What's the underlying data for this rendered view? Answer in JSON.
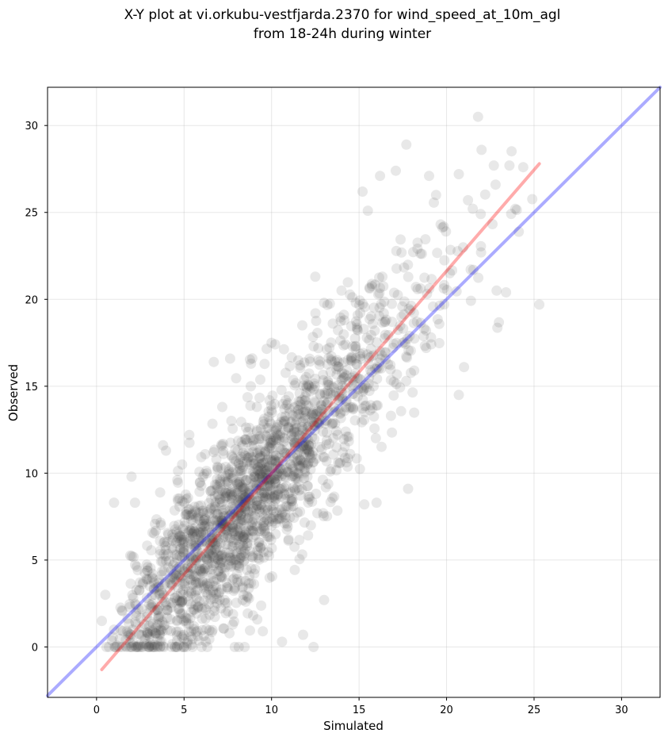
{
  "chart_data": {
    "type": "scatter",
    "title": [
      "X-Y plot at vi.orkubu-vestfjarda.2370 for wind_speed_at_10m_agl",
      "from 18-24h during winter"
    ],
    "xlabel": "Simulated",
    "ylabel": "Observed",
    "xlim": [
      -2.8,
      32.2
    ],
    "ylim": [
      -2.9,
      32.2
    ],
    "xticks": [
      0,
      5,
      10,
      15,
      20,
      25,
      30
    ],
    "yticks": [
      0,
      5,
      10,
      15,
      20,
      25,
      30
    ],
    "xtick_labels": [
      "0",
      "5",
      "10",
      "15",
      "20",
      "25",
      "30"
    ],
    "ytick_labels": [
      "0",
      "5",
      "10",
      "15",
      "20",
      "25",
      "30"
    ],
    "grid": true,
    "point_color": "#404040",
    "point_count_approx": 2000,
    "points_sample": [
      [
        0.3,
        1.5
      ],
      [
        0.5,
        3.0
      ],
      [
        1.0,
        8.3
      ],
      [
        2.0,
        9.8
      ],
      [
        2.2,
        8.3
      ],
      [
        3.8,
        11.6
      ],
      [
        5.3,
        12.2
      ],
      [
        6.7,
        16.4
      ],
      [
        8.9,
        16.6
      ],
      [
        10.0,
        17.5
      ],
      [
        12.5,
        21.3
      ],
      [
        13.0,
        19.8
      ],
      [
        14.0,
        20.5
      ],
      [
        15.2,
        26.2
      ],
      [
        15.5,
        25.1
      ],
      [
        16.2,
        27.1
      ],
      [
        17.1,
        27.4
      ],
      [
        17.7,
        28.9
      ],
      [
        19.0,
        27.1
      ],
      [
        19.4,
        26.0
      ],
      [
        20.7,
        27.2
      ],
      [
        21.8,
        30.5
      ],
      [
        22.0,
        28.6
      ],
      [
        22.7,
        27.7
      ],
      [
        22.8,
        26.6
      ],
      [
        23.4,
        20.4
      ],
      [
        25.3,
        19.7
      ],
      [
        21.0,
        16.1
      ],
      [
        20.7,
        14.5
      ],
      [
        17.8,
        9.1
      ],
      [
        16.0,
        8.3
      ],
      [
        15.3,
        8.2
      ],
      [
        13.0,
        2.7
      ],
      [
        12.4,
        0.0
      ],
      [
        11.8,
        0.7
      ],
      [
        10.6,
        0.3
      ],
      [
        9.5,
        0.9
      ],
      [
        7.9,
        0.0
      ],
      [
        6.0,
        0.0
      ],
      [
        5.0,
        0.0
      ],
      [
        4.6,
        0.0
      ],
      [
        3.0,
        0.0
      ],
      [
        1.8,
        0.8
      ],
      [
        1.0,
        1.0
      ]
    ],
    "lines": [
      {
        "name": "",
        "color": "#0000ff",
        "opacity": 0.33,
        "points": [
          [
            -2.8,
            -2.8
          ],
          [
            32.2,
            32.2
          ]
        ]
      },
      {
        "name": "",
        "color": "#ff0000",
        "opacity": 0.33,
        "points": [
          [
            0.3,
            -1.3
          ],
          [
            25.3,
            27.8
          ]
        ]
      }
    ]
  }
}
